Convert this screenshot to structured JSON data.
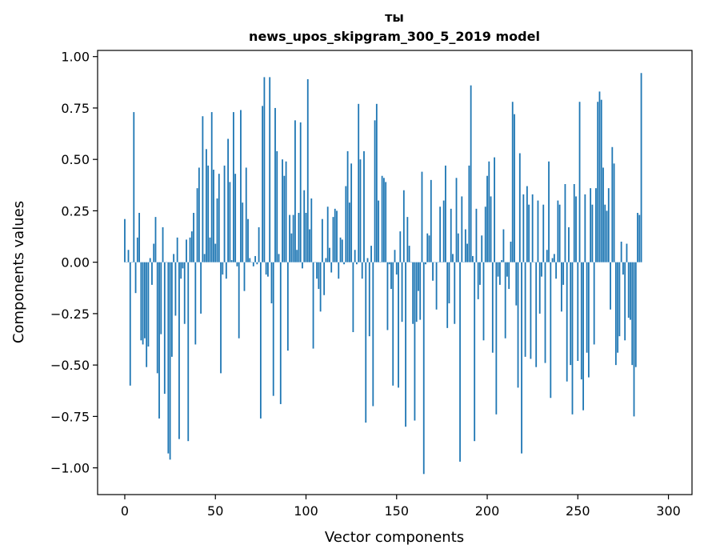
{
  "chart_data": {
    "type": "bar",
    "title": "ты",
    "subtitle": "news_upos_skipgram_300_5_2019 model",
    "xlabel": "Vector components",
    "ylabel": "Components values",
    "xlim": [
      -15,
      313
    ],
    "ylim": [
      -1.13,
      1.03
    ],
    "xticks": [
      0,
      50,
      100,
      150,
      200,
      250,
      300
    ],
    "yticks": [
      1.0,
      0.75,
      0.5,
      0.25,
      0.0,
      -0.25,
      -0.5,
      -0.75,
      -1.0
    ],
    "ytick_labels": [
      "1.00",
      "0.75",
      "0.50",
      "0.25",
      "0.00",
      "−0.25",
      "−0.50",
      "−0.75",
      "−1.00"
    ],
    "grid": false,
    "bar_color": "#1f77b4",
    "values": [
      0.21,
      0.0,
      0.06,
      -0.6,
      0.0,
      0.73,
      -0.15,
      0.12,
      0.24,
      -0.38,
      -0.4,
      -0.37,
      -0.51,
      -0.41,
      0.02,
      -0.11,
      0.09,
      0.22,
      -0.54,
      -0.76,
      -0.35,
      0.17,
      -0.64,
      0.0,
      -0.93,
      -0.96,
      -0.46,
      0.04,
      -0.26,
      0.12,
      -0.86,
      -0.08,
      -0.03,
      -0.3,
      0.11,
      -0.87,
      0.12,
      0.15,
      0.24,
      -0.4,
      0.36,
      0.46,
      -0.25,
      0.71,
      0.04,
      0.55,
      0.47,
      0.12,
      0.73,
      0.45,
      0.09,
      0.31,
      0.43,
      -0.54,
      -0.06,
      0.47,
      -0.08,
      0.6,
      0.39,
      0.01,
      0.73,
      0.43,
      -0.02,
      -0.37,
      0.74,
      0.29,
      -0.14,
      0.46,
      0.21,
      0.02,
      0.0,
      -0.02,
      0.03,
      -0.01,
      0.17,
      -0.76,
      0.76,
      0.9,
      -0.06,
      -0.07,
      0.9,
      -0.2,
      -0.65,
      0.75,
      0.54,
      0.04,
      -0.69,
      0.5,
      0.42,
      0.49,
      -0.43,
      0.23,
      0.14,
      0.23,
      0.69,
      0.06,
      0.24,
      0.68,
      -0.03,
      0.35,
      0.24,
      0.89,
      0.16,
      0.31,
      -0.42,
      0.0,
      -0.08,
      -0.13,
      -0.24,
      0.21,
      -0.16,
      0.02,
      0.27,
      0.07,
      -0.05,
      0.22,
      0.26,
      0.25,
      -0.08,
      0.12,
      0.11,
      -0.01,
      0.37,
      0.54,
      0.29,
      0.48,
      -0.34,
      0.06,
      -0.01,
      0.77,
      0.5,
      -0.08,
      0.54,
      -0.78,
      0.02,
      -0.36,
      0.08,
      -0.7,
      0.69,
      0.77,
      0.3,
      0.0,
      0.42,
      0.41,
      0.39,
      -0.33,
      -0.01,
      -0.13,
      -0.6,
      0.06,
      -0.06,
      -0.61,
      0.15,
      -0.29,
      0.35,
      -0.8,
      0.22,
      0.08,
      0.0,
      -0.3,
      -0.77,
      -0.29,
      -0.14,
      -0.28,
      0.44,
      -1.03,
      -0.01,
      0.14,
      0.13,
      0.4,
      -0.09,
      0.0,
      -0.23,
      0.0,
      0.27,
      0.0,
      0.3,
      0.47,
      -0.32,
      -0.2,
      0.26,
      0.04,
      -0.3,
      0.41,
      0.14,
      -0.97,
      0.32,
      0.0,
      0.16,
      0.09,
      0.47,
      0.86,
      0.03,
      -0.87,
      0.26,
      -0.18,
      -0.11,
      0.13,
      -0.38,
      0.27,
      0.42,
      0.49,
      0.32,
      -0.44,
      0.51,
      -0.74,
      -0.07,
      -0.11,
      0.01,
      0.16,
      -0.37,
      -0.07,
      -0.13,
      0.1,
      0.78,
      0.72,
      -0.21,
      -0.61,
      0.53,
      -0.93,
      0.33,
      -0.46,
      0.37,
      0.28,
      -0.47,
      0.33,
      0.0,
      -0.51,
      0.3,
      -0.25,
      -0.07,
      0.28,
      -0.49,
      0.06,
      0.49,
      -0.66,
      0.02,
      0.04,
      -0.08,
      0.3,
      0.28,
      -0.24,
      -0.11,
      0.38,
      -0.58,
      0.17,
      -0.5,
      -0.74,
      0.38,
      0.32,
      -0.48,
      0.78,
      -0.57,
      -0.72,
      0.33,
      -0.44,
      -0.56,
      0.36,
      0.28,
      -0.4,
      0.36,
      0.78,
      0.83,
      0.79,
      0.46,
      0.28,
      0.25,
      0.36,
      -0.23,
      0.56,
      0.48,
      -0.5,
      -0.44,
      -0.36,
      0.1,
      -0.06,
      -0.38,
      0.09,
      -0.27,
      -0.28,
      -0.5,
      -0.75,
      -0.51,
      0.24,
      0.23,
      0.92
    ]
  }
}
